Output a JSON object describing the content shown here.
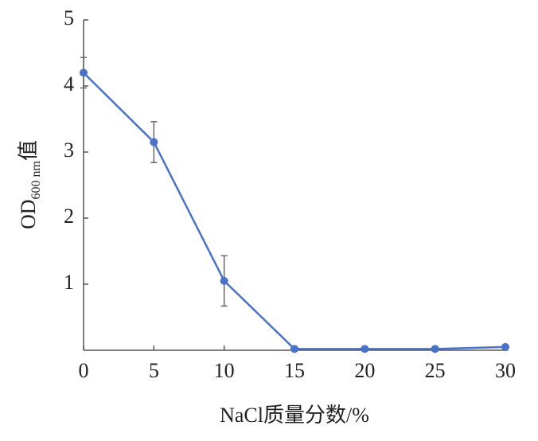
{
  "chart_data": {
    "type": "line",
    "x_label": "NaCl质量分数/%",
    "y_label_main": "OD",
    "y_label_sub": "600 nm",
    "y_label_tail": "值",
    "x": [
      0,
      5,
      10,
      15,
      20,
      25,
      30
    ],
    "series": [
      {
        "color": "#4a72c8",
        "values": [
          4.2,
          3.15,
          1.05,
          0.02,
          0.02,
          0.02,
          0.05
        ],
        "errors": [
          0.23,
          0.31,
          0.38,
          0,
          0,
          0,
          0
        ]
      }
    ],
    "xlim": [
      0,
      30
    ],
    "xticks": [
      0,
      5,
      10,
      15,
      20,
      25,
      30
    ],
    "ylim": [
      0,
      5
    ],
    "yticks": [
      1,
      2,
      3,
      4,
      5
    ]
  }
}
